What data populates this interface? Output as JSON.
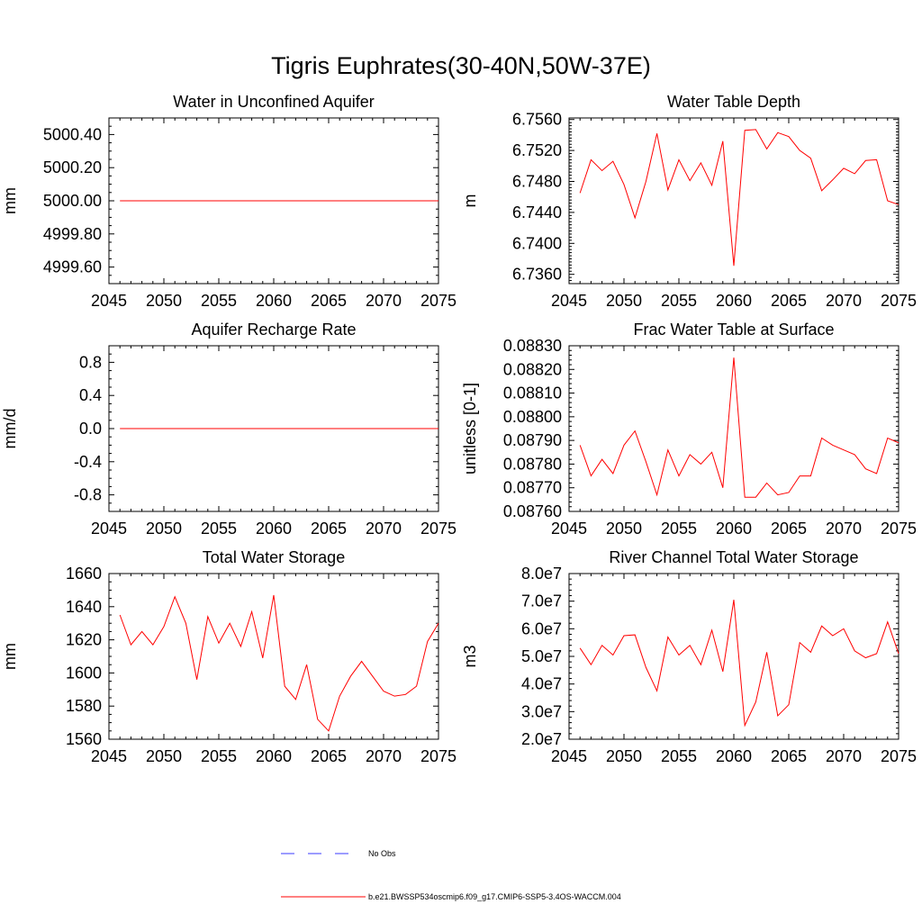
{
  "page": {
    "title": "Tigris Euphrates(30-40N,50W-37E)"
  },
  "legend": {
    "obs_label": "No Obs",
    "obs_color": "#3a3aff",
    "model_label": "b.e21.BWSSP534oscmip6.f09_g17.CMIP6-SSP5-3.4OS-WACCM.004",
    "model_color": "#ff0000"
  },
  "chart_data": [
    {
      "type": "line",
      "title": "Water in Unconfined Aquifer",
      "ylabel": "mm",
      "xlim": [
        2045,
        2075
      ],
      "ylim": [
        4999.5,
        5000.5
      ],
      "xticks": [
        2045,
        2050,
        2055,
        2060,
        2065,
        2070,
        2075
      ],
      "yticks": [
        4999.6,
        4999.8,
        5000.0,
        5000.2,
        5000.4
      ],
      "ydec": 2,
      "yminor": [
        4999.55,
        4999.65,
        4999.7,
        4999.75,
        4999.85,
        4999.9,
        4999.95,
        5000.05,
        5000.1,
        5000.15,
        5000.25,
        5000.3,
        5000.35,
        5000.45
      ],
      "x": [
        2046,
        2047,
        2048,
        2049,
        2050,
        2051,
        2052,
        2053,
        2054,
        2055,
        2056,
        2057,
        2058,
        2059,
        2060,
        2061,
        2062,
        2063,
        2064,
        2065,
        2066,
        2067,
        2068,
        2069,
        2070,
        2071,
        2072,
        2073,
        2074,
        2075
      ],
      "series": [
        {
          "name": "b.e21.BWSSP534oscmip6.f09_g17.CMIP6-SSP5-3.4OS-WACCM.004",
          "color": "#ff0000",
          "values": [
            5000,
            5000,
            5000,
            5000,
            5000,
            5000,
            5000,
            5000,
            5000,
            5000,
            5000,
            5000,
            5000,
            5000,
            5000,
            5000,
            5000,
            5000,
            5000,
            5000,
            5000,
            5000,
            5000,
            5000,
            5000,
            5000,
            5000,
            5000,
            5000,
            5000
          ]
        }
      ]
    },
    {
      "type": "line",
      "title": "Water Table Depth",
      "ylabel": "m",
      "xlim": [
        2045,
        2075
      ],
      "ylim": [
        6.7348,
        6.7562
      ],
      "xticks": [
        2045,
        2050,
        2055,
        2060,
        2065,
        2070,
        2075
      ],
      "yticks": [
        6.736,
        6.74,
        6.744,
        6.748,
        6.752,
        6.756
      ],
      "ydec": 4,
      "yminor": [
        6.7352,
        6.7356,
        6.7364,
        6.7368,
        6.7372,
        6.7376,
        6.738,
        6.7384,
        6.7388,
        6.7392,
        6.7396,
        6.7404,
        6.7408,
        6.7412,
        6.7416,
        6.742,
        6.7424,
        6.7428,
        6.7432,
        6.7436,
        6.7444,
        6.7448,
        6.7452,
        6.7456,
        6.746,
        6.7464,
        6.7468,
        6.7472,
        6.7476,
        6.7484,
        6.7488,
        6.7492,
        6.7496,
        6.75,
        6.7504,
        6.7508,
        6.7512,
        6.7516,
        6.7524,
        6.7528,
        6.7532,
        6.7536,
        6.754,
        6.7544,
        6.7548,
        6.7552,
        6.7556
      ],
      "x": [
        2046,
        2047,
        2048,
        2049,
        2050,
        2051,
        2052,
        2053,
        2054,
        2055,
        2056,
        2057,
        2058,
        2059,
        2060,
        2061,
        2062,
        2063,
        2064,
        2065,
        2066,
        2067,
        2068,
        2069,
        2070,
        2071,
        2072,
        2073,
        2074,
        2075
      ],
      "series": [
        {
          "name": "b.e21.BWSSP534oscmip6.f09_g17.CMIP6-SSP5-3.4OS-WACCM.004",
          "color": "#ff0000",
          "values": [
            6.7465,
            6.7508,
            6.7494,
            6.7506,
            6.7476,
            6.7433,
            6.748,
            6.7542,
            6.7469,
            6.7508,
            6.7481,
            6.7504,
            6.7475,
            6.7532,
            6.7371,
            6.7546,
            6.7547,
            6.7522,
            6.7543,
            6.7538,
            6.752,
            6.751,
            6.7468,
            6.7482,
            6.7497,
            6.749,
            6.7507,
            6.7508,
            6.7455,
            6.745
          ]
        }
      ]
    },
    {
      "type": "line",
      "title": "Aquifer Recharge Rate",
      "ylabel": "mm/d",
      "xlim": [
        2045,
        2075
      ],
      "ylim": [
        -1.0,
        1.0
      ],
      "xticks": [
        2045,
        2050,
        2055,
        2060,
        2065,
        2070,
        2075
      ],
      "yticks": [
        -0.8,
        -0.4,
        0.0,
        0.4,
        0.8
      ],
      "ydec": 1,
      "yminor": [
        -0.9,
        -0.7,
        -0.6,
        -0.5,
        -0.3,
        -0.2,
        -0.1,
        0.1,
        0.2,
        0.3,
        0.5,
        0.6,
        0.7,
        0.9
      ],
      "x": [
        2046,
        2047,
        2048,
        2049,
        2050,
        2051,
        2052,
        2053,
        2054,
        2055,
        2056,
        2057,
        2058,
        2059,
        2060,
        2061,
        2062,
        2063,
        2064,
        2065,
        2066,
        2067,
        2068,
        2069,
        2070,
        2071,
        2072,
        2073,
        2074,
        2075
      ],
      "series": [
        {
          "name": "b.e21.BWSSP534oscmip6.f09_g17.CMIP6-SSP5-3.4OS-WACCM.004",
          "color": "#ff0000",
          "values": [
            0,
            0,
            0,
            0,
            0,
            0,
            0,
            0,
            0,
            0,
            0,
            0,
            0,
            0,
            0,
            0,
            0,
            0,
            0,
            0,
            0,
            0,
            0,
            0,
            0,
            0,
            0,
            0,
            0,
            0
          ]
        }
      ]
    },
    {
      "type": "line",
      "title": "Frac Water Table at Surface",
      "ylabel": "unitless [0-1]",
      "xlim": [
        2045,
        2075
      ],
      "ylim": [
        0.0876,
        0.0883
      ],
      "xticks": [
        2045,
        2050,
        2055,
        2060,
        2065,
        2070,
        2075
      ],
      "yticks": [
        0.0876,
        0.0877,
        0.0878,
        0.0879,
        0.088,
        0.0881,
        0.0882,
        0.0883
      ],
      "ydec": 5,
      "yminor": [
        0.08762,
        0.08764,
        0.08766,
        0.08768,
        0.08772,
        0.08774,
        0.08776,
        0.08778,
        0.08782,
        0.08784,
        0.08786,
        0.08788,
        0.08792,
        0.08794,
        0.08796,
        0.08798,
        0.08802,
        0.08804,
        0.08806,
        0.08808,
        0.08812,
        0.08814,
        0.08816,
        0.08818,
        0.08822,
        0.08824,
        0.08826,
        0.08828
      ],
      "x": [
        2046,
        2047,
        2048,
        2049,
        2050,
        2051,
        2052,
        2053,
        2054,
        2055,
        2056,
        2057,
        2058,
        2059,
        2060,
        2061,
        2062,
        2063,
        2064,
        2065,
        2066,
        2067,
        2068,
        2069,
        2070,
        2071,
        2072,
        2073,
        2074,
        2075
      ],
      "series": [
        {
          "name": "b.e21.BWSSP534oscmip6.f09_g17.CMIP6-SSP5-3.4OS-WACCM.004",
          "color": "#ff0000",
          "values": [
            0.08788,
            0.08775,
            0.08782,
            0.08776,
            0.08788,
            0.08794,
            0.08781,
            0.08767,
            0.08786,
            0.08775,
            0.08784,
            0.0878,
            0.08785,
            0.0877,
            0.08825,
            0.08766,
            0.08766,
            0.08772,
            0.08767,
            0.08768,
            0.08775,
            0.08775,
            0.08791,
            0.08788,
            0.08786,
            0.08784,
            0.08778,
            0.08776,
            0.08791,
            0.08789
          ]
        }
      ]
    },
    {
      "type": "line",
      "title": "Total Water Storage",
      "ylabel": "mm",
      "xlim": [
        2045,
        2075
      ],
      "ylim": [
        1560,
        1660
      ],
      "xticks": [
        2045,
        2050,
        2055,
        2060,
        2065,
        2070,
        2075
      ],
      "yticks": [
        1560,
        1580,
        1600,
        1620,
        1640,
        1660
      ],
      "ydec": 0,
      "yminor": [
        1565,
        1570,
        1575,
        1585,
        1590,
        1595,
        1605,
        1610,
        1615,
        1625,
        1630,
        1635,
        1645,
        1650,
        1655
      ],
      "x": [
        2046,
        2047,
        2048,
        2049,
        2050,
        2051,
        2052,
        2053,
        2054,
        2055,
        2056,
        2057,
        2058,
        2059,
        2060,
        2061,
        2062,
        2063,
        2064,
        2065,
        2066,
        2067,
        2068,
        2069,
        2070,
        2071,
        2072,
        2073,
        2074,
        2075
      ],
      "series": [
        {
          "name": "b.e21.BWSSP534oscmip6.f09_g17.CMIP6-SSP5-3.4OS-WACCM.004",
          "color": "#ff0000",
          "values": [
            1635,
            1617,
            1625,
            1617,
            1628,
            1646,
            1630,
            1596,
            1634,
            1618,
            1630,
            1616,
            1637,
            1609,
            1647,
            1592,
            1584,
            1605,
            1572,
            1565,
            1586,
            1598,
            1607,
            1598,
            1589,
            1586,
            1587,
            1592,
            1619,
            1630
          ]
        }
      ]
    },
    {
      "type": "line",
      "title": "River Channel Total Water Storage",
      "ylabel": "m3",
      "xlim": [
        2045,
        2075
      ],
      "ylim": [
        20000000.0,
        80000000.0
      ],
      "xticks": [
        2045,
        2050,
        2055,
        2060,
        2065,
        2070,
        2075
      ],
      "yticks": [
        20000000.0,
        30000000.0,
        40000000.0,
        50000000.0,
        60000000.0,
        70000000.0,
        80000000.0
      ],
      "ytick_labels": [
        "2.0e7",
        "3.0e7",
        "4.0e7",
        "5.0e7",
        "6.0e7",
        "7.0e7",
        "8.0e7"
      ],
      "yminor": [
        22000000.0,
        24000000.0,
        26000000.0,
        28000000.0,
        32000000.0,
        34000000.0,
        36000000.0,
        38000000.0,
        42000000.0,
        44000000.0,
        46000000.0,
        48000000.0,
        52000000.0,
        54000000.0,
        56000000.0,
        58000000.0,
        62000000.0,
        64000000.0,
        66000000.0,
        68000000.0,
        72000000.0,
        74000000.0,
        76000000.0,
        78000000.0
      ],
      "x": [
        2046,
        2047,
        2048,
        2049,
        2050,
        2051,
        2052,
        2053,
        2054,
        2055,
        2056,
        2057,
        2058,
        2059,
        2060,
        2061,
        2062,
        2063,
        2064,
        2065,
        2066,
        2067,
        2068,
        2069,
        2070,
        2071,
        2072,
        2073,
        2074,
        2075
      ],
      "series": [
        {
          "name": "b.e21.BWSSP534oscmip6.f09_g17.CMIP6-SSP5-3.4OS-WACCM.004",
          "color": "#ff0000",
          "values": [
            53000000.0,
            47000000.0,
            54000000.0,
            50500000.0,
            57500000.0,
            57800000.0,
            46000000.0,
            37500000.0,
            57000000.0,
            50500000.0,
            54000000.0,
            47000000.0,
            59500000.0,
            44500000.0,
            70500000.0,
            25000000.0,
            33500000.0,
            51500000.0,
            28500000.0,
            32500000.0,
            55000000.0,
            51500000.0,
            61000000.0,
            57500000.0,
            60000000.0,
            52000000.0,
            49500000.0,
            51000000.0,
            62500000.0,
            51000000.0
          ]
        }
      ]
    }
  ]
}
